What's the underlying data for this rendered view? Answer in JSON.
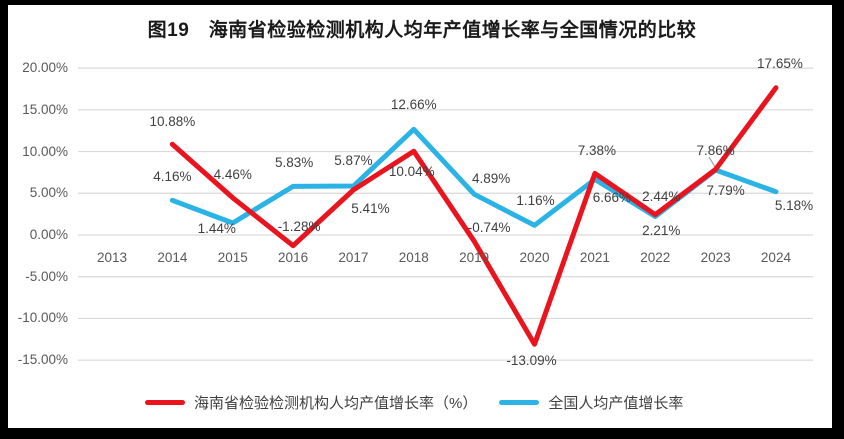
{
  "title": "图19　海南省检验检测机构人均年产值增长率与全国情况的比较",
  "chart_data": {
    "type": "line",
    "categories": [
      "2013",
      "2014",
      "2015",
      "2016",
      "2017",
      "2018",
      "2019",
      "2020",
      "2021",
      "2022",
      "2023",
      "2024"
    ],
    "series": [
      {
        "name": "海南省检验检测机构人均产值增长率（%）",
        "color": "#e9141d",
        "values": [
          null,
          10.88,
          4.46,
          -1.28,
          5.41,
          10.04,
          -0.74,
          -13.09,
          7.38,
          2.44,
          7.86,
          17.65
        ],
        "labels": [
          null,
          "10.88%",
          "4.46%",
          "-1.28%",
          "5.41%",
          "10.04%",
          "-0.74%",
          "-13.09%",
          "7.38%",
          "2.44%",
          "7.86%",
          "17.65%"
        ]
      },
      {
        "name": "全国人均产值增长率",
        "color": "#2bb3e6",
        "values": [
          null,
          4.16,
          1.44,
          5.83,
          5.87,
          12.66,
          4.89,
          1.16,
          6.66,
          2.21,
          7.79,
          5.18
        ],
        "labels": [
          null,
          "4.16%",
          "1.44%",
          "5.83%",
          "5.87%",
          "12.66%",
          "4.89%",
          "1.16%",
          "6.66%",
          "2.21%",
          "7.79%",
          "5.18%"
        ]
      }
    ],
    "y_ticks": [
      "20.00%",
      "15.00%",
      "10.00%",
      "5.00%",
      "0.00%",
      "-5.00%",
      "-10.00%",
      "-15.00%"
    ],
    "y_tick_values": [
      20,
      15,
      10,
      5,
      0,
      -5,
      -10,
      -15
    ],
    "ylim": [
      -15,
      20
    ],
    "grid": "horizontal-only",
    "legend_position": "bottom"
  },
  "colors": {
    "gridline": "#d9d9d9",
    "axis_text": "#595959",
    "data_label_text": "#3f3f3f",
    "title_text": "#1a1a1a",
    "leader_line": "#a6a6a6",
    "frame": "#000000"
  }
}
